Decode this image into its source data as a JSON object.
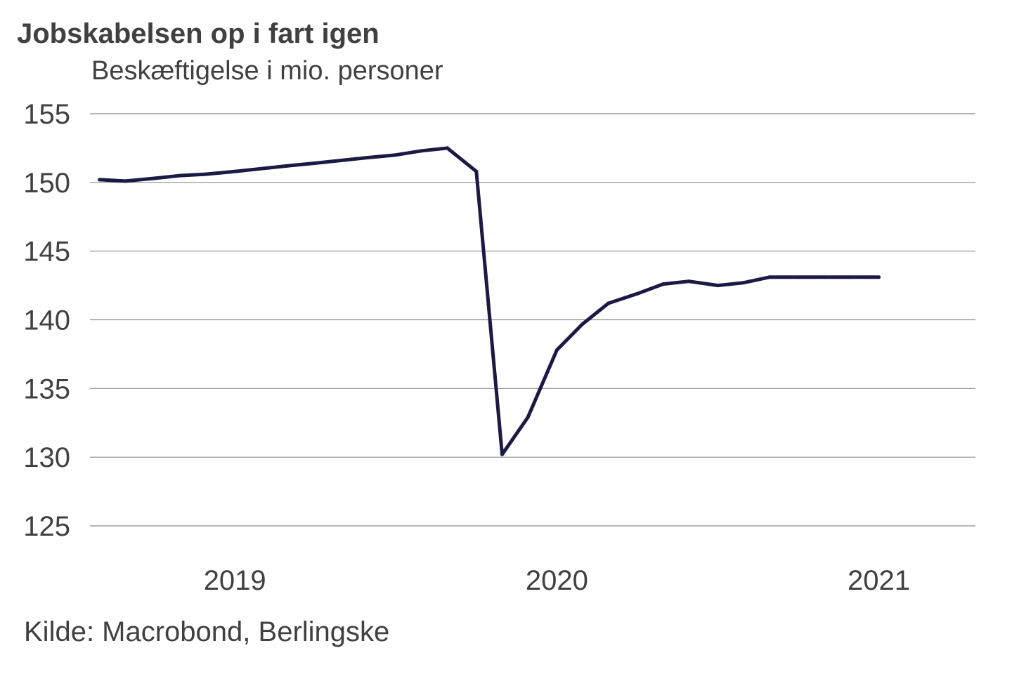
{
  "chart_data": {
    "type": "line",
    "title": "Jobskabelsen op i fart igen",
    "subtitle": "Beskæftigelse i mio. personer",
    "source": "Kilde: Macrobond, Berlingske",
    "ylim": [
      125,
      155
    ],
    "yticks": [
      155,
      150,
      145,
      140,
      135,
      130,
      125
    ],
    "xticks": [
      {
        "label": "2019",
        "value": 2019.0
      },
      {
        "label": "2020",
        "value": 2020.0
      },
      {
        "label": "2021",
        "value": 2021.0
      }
    ],
    "grid": true,
    "line_color": "#1c1a45",
    "series": [
      {
        "x": [
          2018.58,
          2018.66,
          2018.75,
          2018.83,
          2018.91,
          2019.0,
          2019.08,
          2019.16,
          2019.25,
          2019.33,
          2019.41,
          2019.5,
          2019.58,
          2019.66,
          2019.75,
          2019.83,
          2019.91,
          2020.0,
          2020.08,
          2020.16,
          2020.25,
          2020.33,
          2020.41,
          2020.5,
          2020.58,
          2020.66,
          2020.75,
          2020.83,
          2020.91,
          2021.0
        ],
        "values": [
          150.2,
          150.1,
          150.3,
          150.5,
          150.6,
          150.8,
          151.0,
          151.2,
          151.4,
          151.6,
          151.8,
          152.0,
          152.3,
          152.5,
          150.8,
          130.2,
          132.9,
          137.8,
          139.7,
          141.2,
          141.9,
          142.6,
          142.8,
          142.5,
          142.7,
          143.1,
          143.1,
          143.1,
          143.1,
          143.1
        ]
      }
    ]
  }
}
